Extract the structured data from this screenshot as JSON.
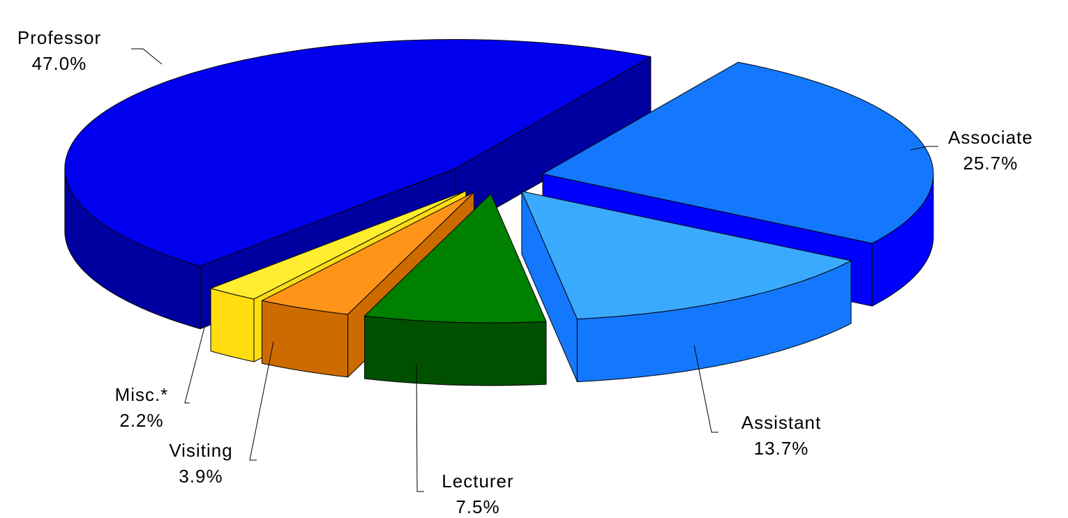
{
  "chart_data": {
    "type": "pie3d",
    "categories": [
      "Associate",
      "Assistant",
      "Lecturer",
      "Visiting",
      "Misc.*",
      "Professor"
    ],
    "values": [
      25.7,
      13.7,
      7.5,
      3.9,
      2.2,
      47.0
    ],
    "value_labels": [
      "25.7%",
      "13.7%",
      "7.5%",
      "3.9%",
      "2.2%",
      "47.0%"
    ],
    "colors": [
      "#1478ff",
      "#3aaaff",
      "#008000",
      "#ff9418",
      "#ffee30",
      "#0000ee"
    ],
    "side_colors": [
      "#0000ff",
      "#1478ff",
      "#005000",
      "#cc6c00",
      "#ffdd10",
      "#0000a0"
    ]
  }
}
